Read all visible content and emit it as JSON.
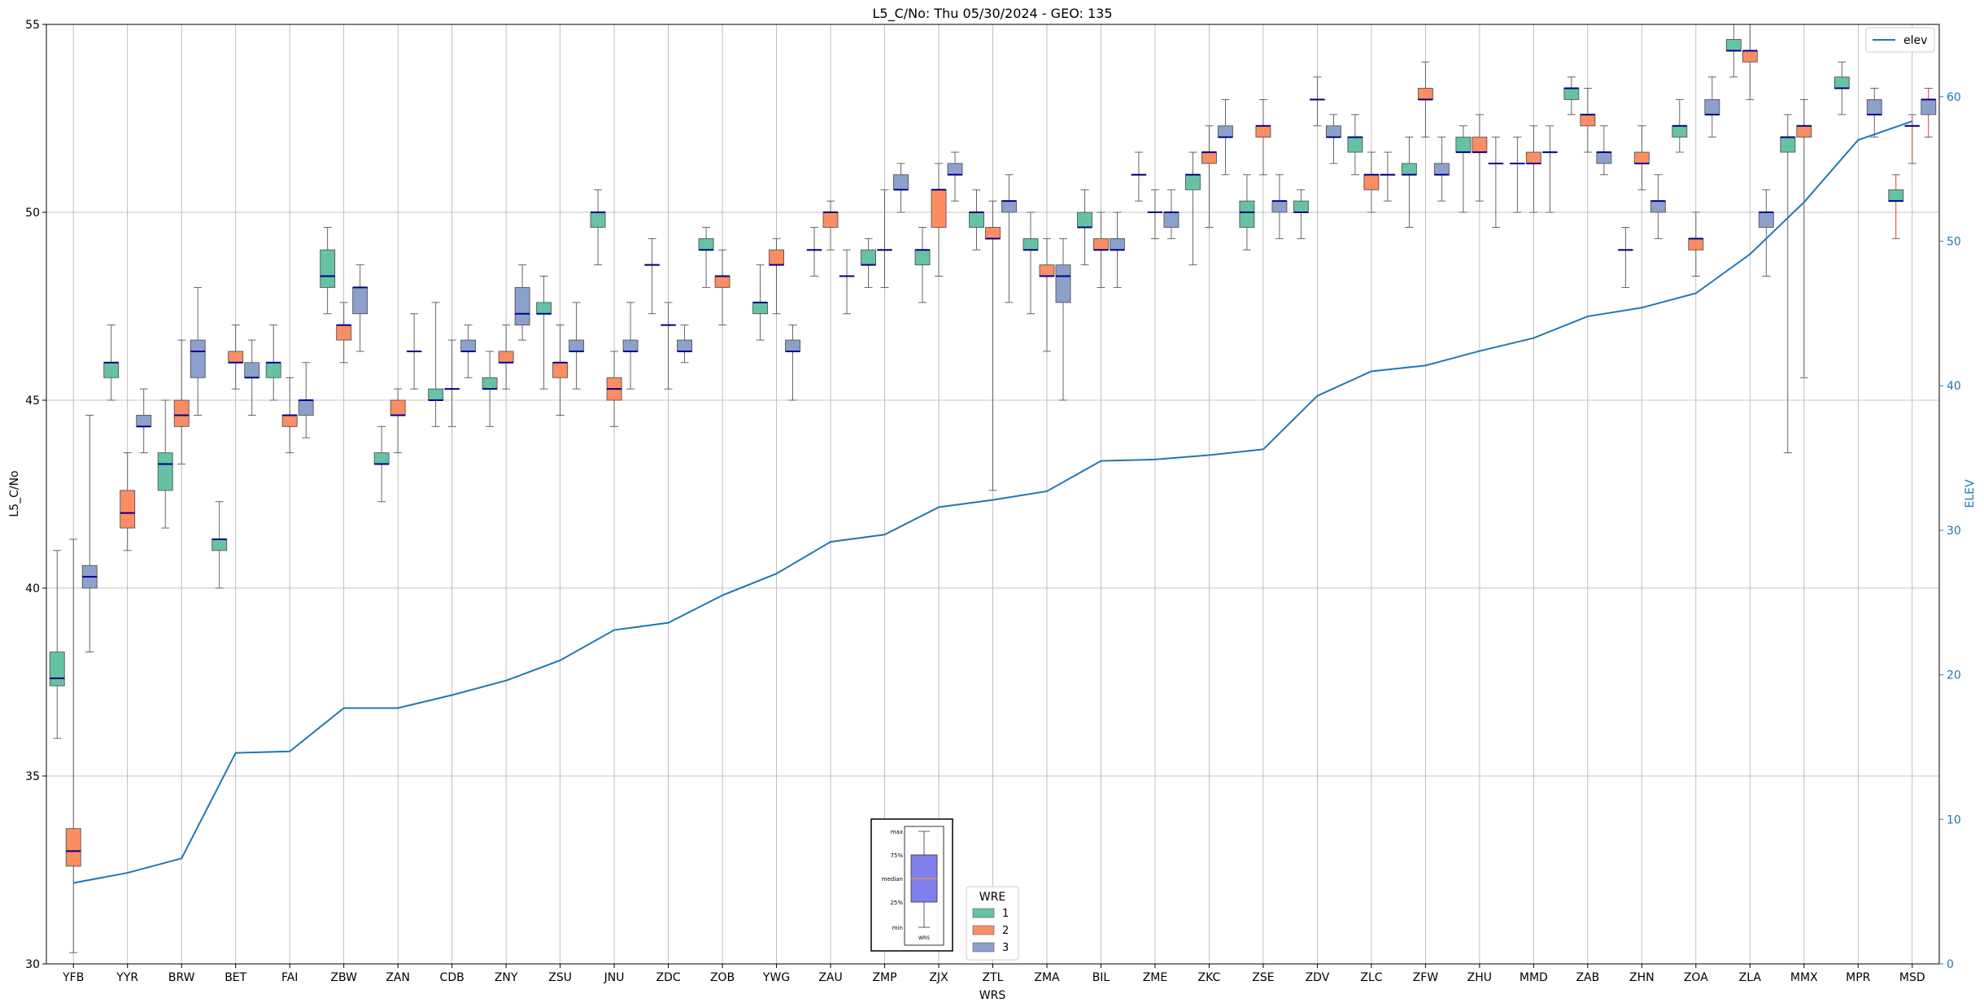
{
  "chart_data": {
    "type": "box",
    "title": "L5_C/No: Thu 05/30/2024 - GEO: 135",
    "xlabel": "WRS",
    "ylabel": "L5_C/No",
    "y2label": "ELEV",
    "ylim": [
      30,
      55
    ],
    "y2lim": [
      0,
      65
    ],
    "yticks": [
      "30",
      "35",
      "40",
      "45",
      "50",
      "55"
    ],
    "y2ticks": [
      "0",
      "10",
      "20",
      "30",
      "40",
      "50",
      "60"
    ],
    "grid": true,
    "categories": [
      "YFB",
      "YYR",
      "BRW",
      "BET",
      "FAI",
      "ZBW",
      "ZAN",
      "CDB",
      "ZNY",
      "ZSU",
      "JNU",
      "ZDC",
      "ZOB",
      "YWG",
      "ZAU",
      "ZMP",
      "ZJX",
      "ZTL",
      "ZMA",
      "BIL",
      "ZME",
      "ZKC",
      "ZSE",
      "ZDV",
      "ZLC",
      "ZFW",
      "ZHU",
      "MMD",
      "ZAB",
      "ZHN",
      "ZOA",
      "ZLA",
      "MMX",
      "MPR",
      "MSD"
    ],
    "elev": [
      5.6,
      6.3,
      7.3,
      14.6,
      14.7,
      17.7,
      17.7,
      18.6,
      19.6,
      21.0,
      23.1,
      23.6,
      25.5,
      27.0,
      29.2,
      29.7,
      31.6,
      32.1,
      32.7,
      34.8,
      34.9,
      35.2,
      35.6,
      39.3,
      41.0,
      41.4,
      42.4,
      43.3,
      44.8,
      45.4,
      46.4,
      49.1,
      52.7,
      57.0,
      58.3
    ],
    "legend_elev": {
      "label": "elev",
      "position": "upper right"
    },
    "legend_wre": {
      "title": "WRE",
      "items": [
        "1",
        "2",
        "3"
      ],
      "colors": [
        "#66c2a5",
        "#fc8d62",
        "#8da0cb"
      ],
      "position": "lower center"
    },
    "inset_labels": [
      "max",
      "75%",
      "median",
      "25%",
      "min",
      "WRS"
    ],
    "boxes": [
      {
        "cat": "YFB",
        "wre": 1,
        "min": 36.0,
        "q1": 37.4,
        "med": 37.6,
        "q3": 38.3,
        "max": 41.0
      },
      {
        "cat": "YFB",
        "wre": 2,
        "min": 30.3,
        "q1": 32.6,
        "med": 33.0,
        "q3": 33.6,
        "max": 41.3
      },
      {
        "cat": "YFB",
        "wre": 3,
        "min": 38.3,
        "q1": 40.0,
        "med": 40.3,
        "q3": 40.6,
        "max": 44.6
      },
      {
        "cat": "YYR",
        "wre": 1,
        "min": 45.0,
        "q1": 45.6,
        "med": 46.0,
        "q3": 46.0,
        "max": 47.0
      },
      {
        "cat": "YYR",
        "wre": 2,
        "min": 41.0,
        "q1": 41.6,
        "med": 42.0,
        "q3": 42.6,
        "max": 43.6
      },
      {
        "cat": "YYR",
        "wre": 3,
        "min": 43.6,
        "q1": 44.3,
        "med": 44.3,
        "q3": 44.6,
        "max": 45.3
      },
      {
        "cat": "BRW",
        "wre": 1,
        "min": 41.6,
        "q1": 42.6,
        "med": 43.3,
        "q3": 43.6,
        "max": 45.0
      },
      {
        "cat": "BRW",
        "wre": 2,
        "min": 43.3,
        "q1": 44.3,
        "med": 44.6,
        "q3": 45.0,
        "max": 46.6
      },
      {
        "cat": "BRW",
        "wre": 3,
        "min": 44.6,
        "q1": 45.6,
        "med": 46.3,
        "q3": 46.6,
        "max": 48.0
      },
      {
        "cat": "BET",
        "wre": 1,
        "min": 40.0,
        "q1": 41.0,
        "med": 41.3,
        "q3": 41.3,
        "max": 42.3
      },
      {
        "cat": "BET",
        "wre": 2,
        "min": 45.3,
        "q1": 46.0,
        "med": 46.0,
        "q3": 46.3,
        "max": 47.0
      },
      {
        "cat": "BET",
        "wre": 3,
        "min": 44.6,
        "q1": 45.6,
        "med": 45.6,
        "q3": 46.0,
        "max": 46.6
      },
      {
        "cat": "FAI",
        "wre": 1,
        "min": 45.0,
        "q1": 45.6,
        "med": 46.0,
        "q3": 46.0,
        "max": 47.0
      },
      {
        "cat": "FAI",
        "wre": 2,
        "min": 43.6,
        "q1": 44.3,
        "med": 44.6,
        "q3": 44.6,
        "max": 45.6
      },
      {
        "cat": "FAI",
        "wre": 3,
        "min": 44.0,
        "q1": 44.6,
        "med": 45.0,
        "q3": 45.0,
        "max": 46.0
      },
      {
        "cat": "ZBW",
        "wre": 1,
        "min": 47.3,
        "q1": 48.0,
        "med": 48.3,
        "q3": 49.0,
        "max": 49.6
      },
      {
        "cat": "ZBW",
        "wre": 2,
        "min": 46.0,
        "q1": 46.6,
        "med": 47.0,
        "q3": 47.0,
        "max": 47.6
      },
      {
        "cat": "ZBW",
        "wre": 3,
        "min": 46.3,
        "q1": 47.3,
        "med": 48.0,
        "q3": 48.0,
        "max": 48.6
      },
      {
        "cat": "ZAN",
        "wre": 1,
        "min": 42.3,
        "q1": 43.3,
        "med": 43.3,
        "q3": 43.6,
        "max": 44.3
      },
      {
        "cat": "ZAN",
        "wre": 2,
        "min": 43.6,
        "q1": 44.6,
        "med": 44.6,
        "q3": 45.0,
        "max": 45.3
      },
      {
        "cat": "ZAN",
        "wre": 3,
        "min": 45.3,
        "q1": 46.3,
        "med": 46.3,
        "q3": 46.3,
        "max": 47.3
      },
      {
        "cat": "CDB",
        "wre": 1,
        "min": 44.3,
        "q1": 45.0,
        "med": 45.0,
        "q3": 45.3,
        "max": 47.6
      },
      {
        "cat": "CDB",
        "wre": 2,
        "min": 44.3,
        "q1": 45.3,
        "med": 45.3,
        "q3": 45.3,
        "max": 46.6
      },
      {
        "cat": "CDB",
        "wre": 3,
        "min": 45.6,
        "q1": 46.3,
        "med": 46.3,
        "q3": 46.6,
        "max": 47.0
      },
      {
        "cat": "ZNY",
        "wre": 1,
        "min": 44.3,
        "q1": 45.3,
        "med": 45.3,
        "q3": 45.6,
        "max": 46.3
      },
      {
        "cat": "ZNY",
        "wre": 2,
        "min": 45.3,
        "q1": 46.0,
        "med": 46.0,
        "q3": 46.3,
        "max": 47.0
      },
      {
        "cat": "ZNY",
        "wre": 3,
        "min": 46.6,
        "q1": 47.0,
        "med": 47.3,
        "q3": 48.0,
        "max": 48.6
      },
      {
        "cat": "ZSU",
        "wre": 1,
        "min": 45.3,
        "q1": 47.3,
        "med": 47.3,
        "q3": 47.6,
        "max": 48.3
      },
      {
        "cat": "ZSU",
        "wre": 2,
        "min": 44.6,
        "q1": 45.6,
        "med": 46.0,
        "q3": 46.0,
        "max": 47.0
      },
      {
        "cat": "ZSU",
        "wre": 3,
        "min": 45.3,
        "q1": 46.3,
        "med": 46.3,
        "q3": 46.6,
        "max": 47.6
      },
      {
        "cat": "JNU",
        "wre": 1,
        "min": 48.6,
        "q1": 49.6,
        "med": 50.0,
        "q3": 50.0,
        "max": 50.6
      },
      {
        "cat": "JNU",
        "wre": 2,
        "min": 44.3,
        "q1": 45.0,
        "med": 45.3,
        "q3": 45.6,
        "max": 46.3
      },
      {
        "cat": "JNU",
        "wre": 3,
        "min": 45.3,
        "q1": 46.3,
        "med": 46.3,
        "q3": 46.6,
        "max": 47.6
      },
      {
        "cat": "ZDC",
        "wre": 1,
        "min": 47.3,
        "q1": 48.6,
        "med": 48.6,
        "q3": 48.6,
        "max": 49.3
      },
      {
        "cat": "ZDC",
        "wre": 2,
        "min": 45.3,
        "q1": 47.0,
        "med": 47.0,
        "q3": 47.0,
        "max": 47.6
      },
      {
        "cat": "ZDC",
        "wre": 3,
        "min": 46.0,
        "q1": 46.3,
        "med": 46.3,
        "q3": 46.6,
        "max": 47.0
      },
      {
        "cat": "ZOB",
        "wre": 1,
        "min": 48.0,
        "q1": 49.0,
        "med": 49.0,
        "q3": 49.3,
        "max": 49.6
      },
      {
        "cat": "ZOB",
        "wre": 2,
        "min": 47.0,
        "q1": 48.0,
        "med": 48.3,
        "q3": 48.3,
        "max": 49.0
      },
      {
        "cat": "YWG",
        "wre": 1,
        "min": 46.6,
        "q1": 47.3,
        "med": 47.6,
        "q3": 47.6,
        "max": 48.6
      },
      {
        "cat": "YWG",
        "wre": 2,
        "min": 47.3,
        "q1": 48.6,
        "med": 48.6,
        "q3": 49.0,
        "max": 49.3
      },
      {
        "cat": "YWG",
        "wre": 3,
        "min": 45.0,
        "q1": 46.3,
        "med": 46.3,
        "q3": 46.6,
        "max": 47.0
      },
      {
        "cat": "ZAU",
        "wre": 1,
        "min": 48.3,
        "q1": 49.0,
        "med": 49.0,
        "q3": 49.0,
        "max": 49.6
      },
      {
        "cat": "ZAU",
        "wre": 2,
        "min": 49.0,
        "q1": 49.6,
        "med": 50.0,
        "q3": 50.0,
        "max": 50.3
      },
      {
        "cat": "ZAU",
        "wre": 3,
        "min": 47.3,
        "q1": 48.3,
        "med": 48.3,
        "q3": 48.3,
        "max": 49.0
      },
      {
        "cat": "ZMP",
        "wre": 1,
        "min": 48.0,
        "q1": 48.6,
        "med": 48.6,
        "q3": 49.0,
        "max": 49.3
      },
      {
        "cat": "ZMP",
        "wre": 2,
        "min": 48.0,
        "q1": 49.0,
        "med": 49.0,
        "q3": 49.0,
        "max": 50.6
      },
      {
        "cat": "ZMP",
        "wre": 3,
        "min": 50.0,
        "q1": 50.6,
        "med": 50.6,
        "q3": 51.0,
        "max": 51.3
      },
      {
        "cat": "ZJX",
        "wre": 1,
        "min": 47.6,
        "q1": 48.6,
        "med": 49.0,
        "q3": 49.0,
        "max": 49.6
      },
      {
        "cat": "ZJX",
        "wre": 2,
        "min": 48.3,
        "q1": 49.6,
        "med": 50.6,
        "q3": 50.6,
        "max": 51.3
      },
      {
        "cat": "ZJX",
        "wre": 3,
        "min": 50.3,
        "q1": 51.0,
        "med": 51.0,
        "q3": 51.3,
        "max": 51.6
      },
      {
        "cat": "ZTL",
        "wre": 1,
        "min": 49.0,
        "q1": 49.6,
        "med": 50.0,
        "q3": 50.0,
        "max": 50.6
      },
      {
        "cat": "ZTL",
        "wre": 2,
        "min": 42.6,
        "q1": 49.3,
        "med": 49.3,
        "q3": 49.6,
        "max": 50.3
      },
      {
        "cat": "ZTL",
        "wre": 3,
        "min": 47.6,
        "q1": 50.0,
        "med": 50.3,
        "q3": 50.3,
        "max": 51.0
      },
      {
        "cat": "ZMA",
        "wre": 1,
        "min": 47.3,
        "q1": 49.0,
        "med": 49.0,
        "q3": 49.3,
        "max": 50.0
      },
      {
        "cat": "ZMA",
        "wre": 2,
        "min": 46.3,
        "q1": 48.3,
        "med": 48.3,
        "q3": 48.6,
        "max": 49.3
      },
      {
        "cat": "ZMA",
        "wre": 3,
        "min": 45.0,
        "q1": 47.6,
        "med": 48.3,
        "q3": 48.6,
        "max": 49.3
      },
      {
        "cat": "BIL",
        "wre": 1,
        "min": 48.6,
        "q1": 49.6,
        "med": 49.6,
        "q3": 50.0,
        "max": 50.6
      },
      {
        "cat": "BIL",
        "wre": 2,
        "min": 48.0,
        "q1": 49.0,
        "med": 49.0,
        "q3": 49.3,
        "max": 50.0
      },
      {
        "cat": "BIL",
        "wre": 3,
        "min": 48.0,
        "q1": 49.0,
        "med": 49.0,
        "q3": 49.3,
        "max": 50.0
      },
      {
        "cat": "ZME",
        "wre": 1,
        "min": 50.3,
        "q1": 51.0,
        "med": 51.0,
        "q3": 51.0,
        "max": 51.6
      },
      {
        "cat": "ZME",
        "wre": 2,
        "min": 49.3,
        "q1": 50.0,
        "med": 50.0,
        "q3": 50.0,
        "max": 50.6
      },
      {
        "cat": "ZME",
        "wre": 3,
        "min": 49.3,
        "q1": 49.6,
        "med": 50.0,
        "q3": 50.0,
        "max": 50.6
      },
      {
        "cat": "ZKC",
        "wre": 1,
        "min": 48.6,
        "q1": 50.6,
        "med": 51.0,
        "q3": 51.0,
        "max": 51.6
      },
      {
        "cat": "ZKC",
        "wre": 2,
        "min": 49.6,
        "q1": 51.3,
        "med": 51.6,
        "q3": 51.6,
        "max": 52.3
      },
      {
        "cat": "ZKC",
        "wre": 3,
        "min": 51.0,
        "q1": 52.0,
        "med": 52.0,
        "q3": 52.3,
        "max": 53.0
      },
      {
        "cat": "ZSE",
        "wre": 1,
        "min": 49.0,
        "q1": 49.6,
        "med": 50.0,
        "q3": 50.3,
        "max": 51.0
      },
      {
        "cat": "ZSE",
        "wre": 2,
        "min": 51.0,
        "q1": 52.0,
        "med": 52.3,
        "q3": 52.3,
        "max": 53.0
      },
      {
        "cat": "ZSE",
        "wre": 3,
        "min": 49.3,
        "q1": 50.0,
        "med": 50.3,
        "q3": 50.3,
        "max": 51.0
      },
      {
        "cat": "ZDV",
        "wre": 1,
        "min": 49.3,
        "q1": 50.0,
        "med": 50.0,
        "q3": 50.3,
        "max": 50.6
      },
      {
        "cat": "ZDV",
        "wre": 2,
        "min": 52.3,
        "q1": 53.0,
        "med": 53.0,
        "q3": 53.0,
        "max": 53.6
      },
      {
        "cat": "ZDV",
        "wre": 3,
        "min": 51.3,
        "q1": 52.0,
        "med": 52.0,
        "q3": 52.3,
        "max": 52.6
      },
      {
        "cat": "ZLC",
        "wre": 1,
        "min": 51.0,
        "q1": 51.6,
        "med": 52.0,
        "q3": 52.0,
        "max": 52.6
      },
      {
        "cat": "ZLC",
        "wre": 2,
        "min": 50.0,
        "q1": 50.6,
        "med": 51.0,
        "q3": 51.0,
        "max": 51.6
      },
      {
        "cat": "ZLC",
        "wre": 3,
        "min": 50.3,
        "q1": 51.0,
        "med": 51.0,
        "q3": 51.0,
        "max": 51.6
      },
      {
        "cat": "ZFW",
        "wre": 1,
        "min": 49.6,
        "q1": 51.0,
        "med": 51.0,
        "q3": 51.3,
        "max": 52.0
      },
      {
        "cat": "ZFW",
        "wre": 2,
        "min": 52.0,
        "q1": 53.0,
        "med": 53.0,
        "q3": 53.3,
        "max": 54.0
      },
      {
        "cat": "ZFW",
        "wre": 3,
        "min": 50.3,
        "q1": 51.0,
        "med": 51.0,
        "q3": 51.3,
        "max": 52.0
      },
      {
        "cat": "ZHU",
        "wre": 1,
        "min": 50.0,
        "q1": 51.6,
        "med": 51.6,
        "q3": 52.0,
        "max": 52.3
      },
      {
        "cat": "ZHU",
        "wre": 2,
        "min": 50.3,
        "q1": 51.6,
        "med": 51.6,
        "q3": 52.0,
        "max": 52.6
      },
      {
        "cat": "ZHU",
        "wre": 3,
        "min": 49.6,
        "q1": 51.3,
        "med": 51.3,
        "q3": 51.3,
        "max": 52.0
      },
      {
        "cat": "MMD",
        "wre": 1,
        "min": 50.0,
        "q1": 51.3,
        "med": 51.3,
        "q3": 51.3,
        "max": 52.0
      },
      {
        "cat": "MMD",
        "wre": 2,
        "min": 50.0,
        "q1": 51.3,
        "med": 51.3,
        "q3": 51.6,
        "max": 52.3
      },
      {
        "cat": "MMD",
        "wre": 3,
        "min": 50.0,
        "q1": 51.6,
        "med": 51.6,
        "q3": 51.6,
        "max": 52.3
      },
      {
        "cat": "ZAB",
        "wre": 1,
        "min": 52.6,
        "q1": 53.0,
        "med": 53.3,
        "q3": 53.3,
        "max": 53.6
      },
      {
        "cat": "ZAB",
        "wre": 2,
        "min": 51.6,
        "q1": 52.3,
        "med": 52.6,
        "q3": 52.6,
        "max": 53.3
      },
      {
        "cat": "ZAB",
        "wre": 3,
        "min": 51.0,
        "q1": 51.3,
        "med": 51.6,
        "q3": 51.6,
        "max": 52.3
      },
      {
        "cat": "ZHN",
        "wre": 1,
        "min": 48.0,
        "q1": 49.0,
        "med": 49.0,
        "q3": 49.0,
        "max": 49.6
      },
      {
        "cat": "ZHN",
        "wre": 2,
        "min": 50.6,
        "q1": 51.3,
        "med": 51.3,
        "q3": 51.6,
        "max": 52.3
      },
      {
        "cat": "ZHN",
        "wre": 3,
        "min": 49.3,
        "q1": 50.0,
        "med": 50.3,
        "q3": 50.3,
        "max": 51.0
      },
      {
        "cat": "ZOA",
        "wre": 1,
        "min": 51.6,
        "q1": 52.0,
        "med": 52.3,
        "q3": 52.3,
        "max": 53.0
      },
      {
        "cat": "ZOA",
        "wre": 2,
        "min": 48.3,
        "q1": 49.0,
        "med": 49.3,
        "q3": 49.3,
        "max": 50.0
      },
      {
        "cat": "ZOA",
        "wre": 3,
        "min": 52.0,
        "q1": 52.6,
        "med": 52.6,
        "q3": 53.0,
        "max": 53.6
      },
      {
        "cat": "ZLA",
        "wre": 1,
        "min": 53.6,
        "q1": 54.3,
        "med": 54.3,
        "q3": 54.6,
        "max": 55.0
      },
      {
        "cat": "ZLA",
        "wre": 2,
        "min": 53.0,
        "q1": 54.0,
        "med": 54.3,
        "q3": 54.3,
        "max": 55.0
      },
      {
        "cat": "ZLA",
        "wre": 3,
        "min": 48.3,
        "q1": 49.6,
        "med": 50.0,
        "q3": 50.0,
        "max": 50.6
      },
      {
        "cat": "MMX",
        "wre": 1,
        "min": 43.6,
        "q1": 51.6,
        "med": 52.0,
        "q3": 52.0,
        "max": 52.6
      },
      {
        "cat": "MMX",
        "wre": 2,
        "min": 45.6,
        "q1": 52.0,
        "med": 52.3,
        "q3": 52.3,
        "max": 53.0
      },
      {
        "cat": "MPR",
        "wre": 1,
        "min": 52.6,
        "q1": 53.3,
        "med": 53.3,
        "q3": 53.6,
        "max": 54.0
      },
      {
        "cat": "MPR",
        "wre": 3,
        "min": 52.0,
        "q1": 52.6,
        "med": 52.6,
        "q3": 53.0,
        "max": 53.3
      },
      {
        "cat": "MSD",
        "wre": 1,
        "min": 49.3,
        "q1": 50.3,
        "med": 50.3,
        "q3": 50.6,
        "max": 51.0
      },
      {
        "cat": "MSD",
        "wre": 2,
        "min": 51.3,
        "q1": 52.3,
        "med": 52.3,
        "q3": 52.3,
        "max": 52.6
      },
      {
        "cat": "MSD",
        "wre": 3,
        "min": 52.0,
        "q1": 52.6,
        "med": 53.0,
        "q3": 53.0,
        "max": 53.3
      }
    ]
  }
}
